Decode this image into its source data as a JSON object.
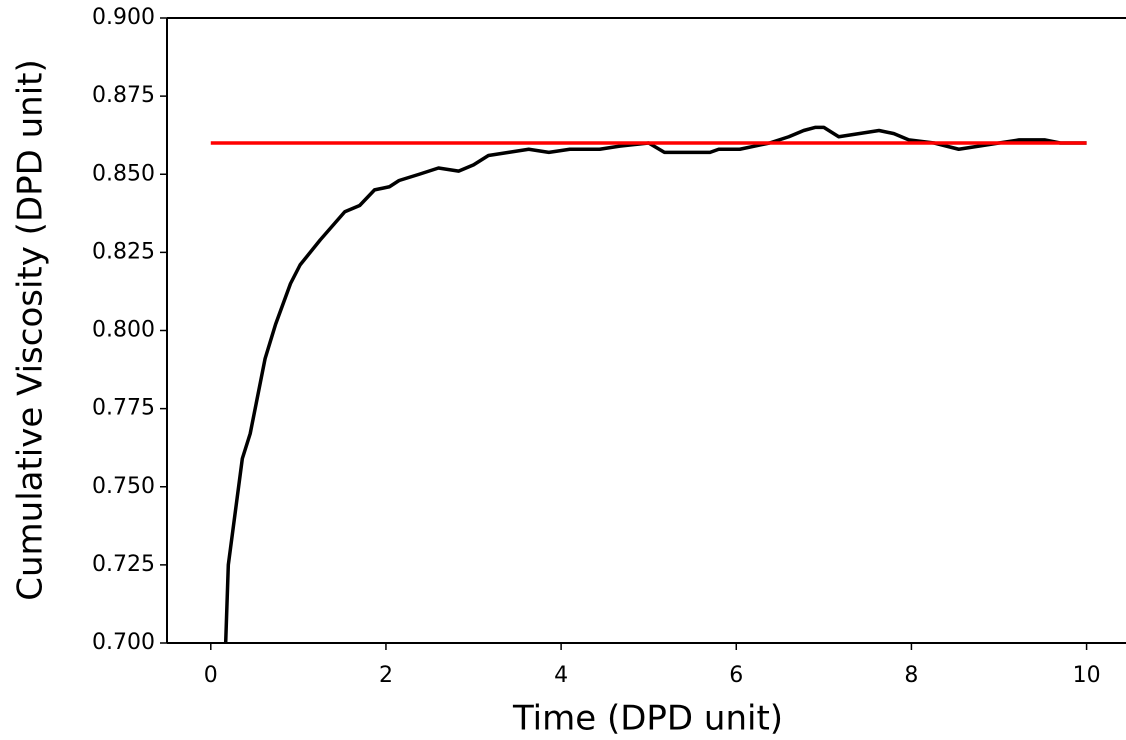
{
  "chart_data": {
    "type": "line",
    "xlabel": "Time (DPD unit)",
    "ylabel": "Cumulative Viscosity (DPD unit)",
    "xlim": [
      -0.5,
      10.45
    ],
    "ylim": [
      0.7,
      0.9
    ],
    "xticks": [
      0,
      2,
      4,
      6,
      8,
      10
    ],
    "yticks": [
      {
        "value": 0.7,
        "label": "0.700"
      },
      0.725,
      {
        "value": 0.75,
        "label": "0.750"
      },
      0.775,
      {
        "value": 0.8,
        "label": "0.800"
      },
      0.825,
      {
        "value": 0.85,
        "label": "0.850"
      },
      0.875,
      {
        "value": 0.9,
        "label": "0.900"
      }
    ],
    "series": [
      {
        "color": "#000000",
        "x": [
          0.17,
          0.2,
          0.36,
          0.45,
          0.62,
          0.74,
          0.91,
          1.02,
          1.25,
          1.53,
          1.7,
          1.87,
          2.04,
          2.15,
          2.38,
          2.6,
          2.83,
          3.0,
          3.17,
          3.4,
          3.63,
          3.86,
          4.1,
          4.44,
          4.67,
          5.0,
          5.18,
          5.47,
          5.7,
          5.8,
          6.04,
          6.38,
          6.6,
          6.77,
          6.9,
          7.0,
          7.17,
          7.4,
          7.63,
          7.8,
          7.97,
          8.26,
          8.54,
          8.77,
          9.0,
          9.23,
          9.52,
          9.7,
          10.0
        ],
        "values": [
          0.7,
          0.725,
          0.759,
          0.767,
          0.791,
          0.802,
          0.815,
          0.821,
          0.829,
          0.838,
          0.84,
          0.845,
          0.846,
          0.848,
          0.85,
          0.852,
          0.851,
          0.853,
          0.856,
          0.857,
          0.858,
          0.857,
          0.858,
          0.858,
          0.859,
          0.86,
          0.857,
          0.857,
          0.857,
          0.858,
          0.858,
          0.86,
          0.862,
          0.864,
          0.865,
          0.865,
          0.862,
          0.863,
          0.864,
          0.863,
          0.861,
          0.86,
          0.858,
          0.859,
          0.86,
          0.861,
          0.861,
          0.86,
          0.86
        ]
      },
      {
        "color": "#ff0000",
        "x": [
          0,
          10
        ],
        "values": [
          0.86,
          0.86
        ]
      }
    ]
  }
}
